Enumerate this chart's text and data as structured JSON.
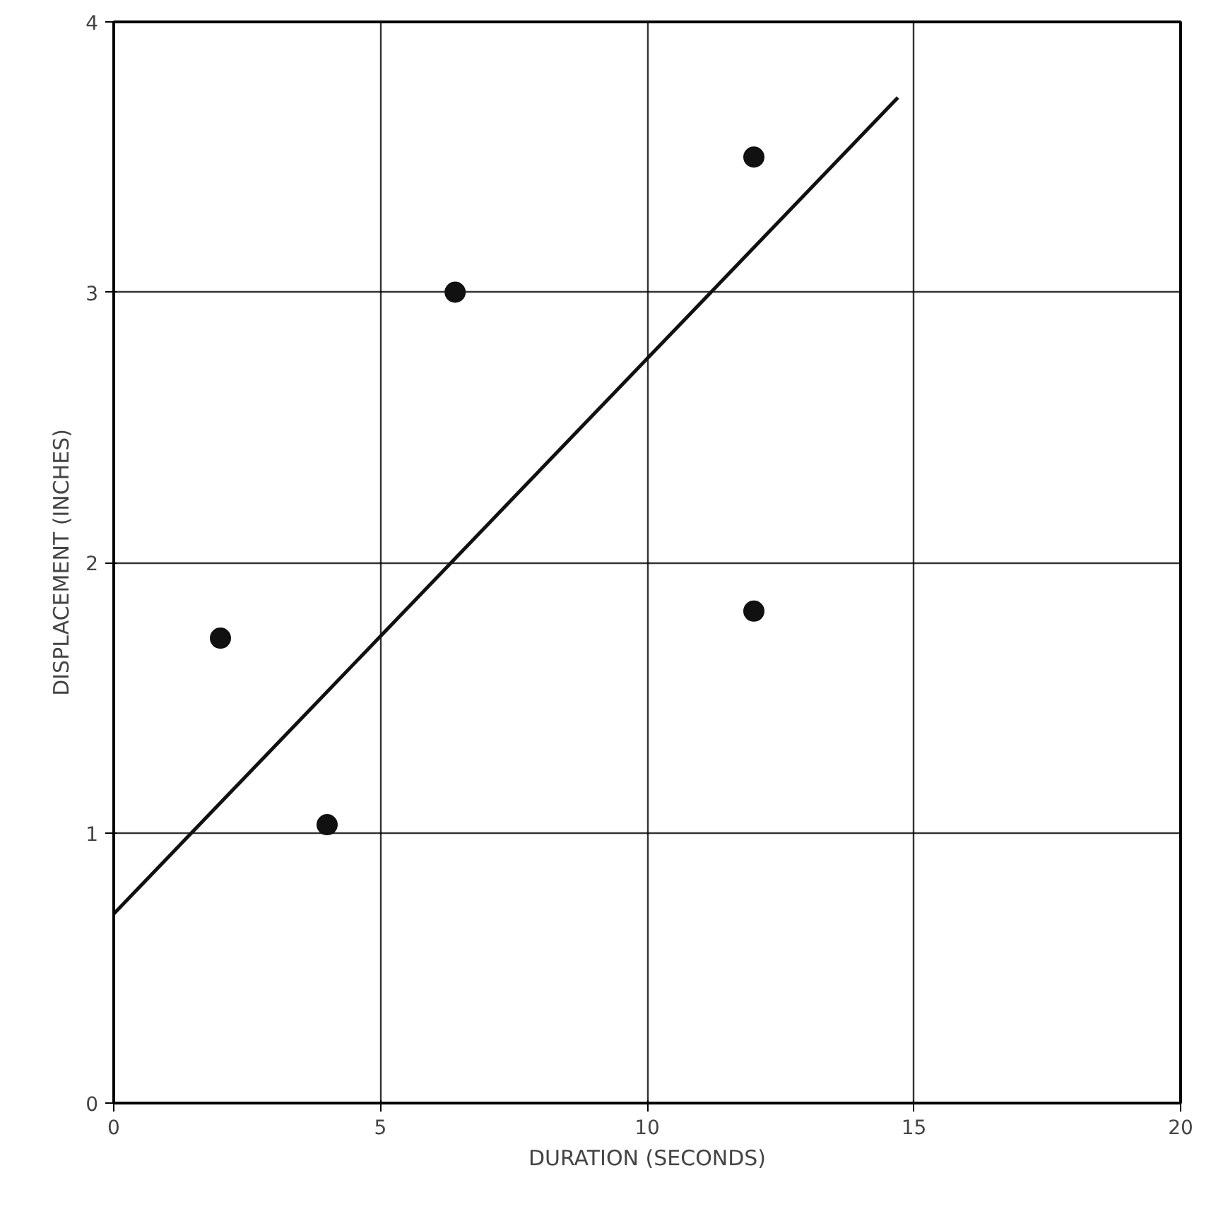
{
  "chart_data": {
    "type": "scatter",
    "xlabel": "DURATION (SECONDS)",
    "ylabel": "DISPLACEMENT (INCHES)",
    "x": [
      2,
      4,
      6.4,
      12,
      12
    ],
    "series": [
      {
        "color": "#111111",
        "values": [
          1.72,
          1.03,
          3.0,
          3.5,
          1.82
        ]
      },
      {
        "type": "line",
        "marker": "none",
        "color": "#111111",
        "x": [
          0,
          14.7
        ],
        "values": [
          0.7,
          3.72
        ]
      }
    ],
    "xlim": [
      0,
      20
    ],
    "ylim": [
      0,
      4
    ],
    "xticks": [
      0,
      5,
      10,
      15,
      20
    ],
    "yticks": [
      0,
      1,
      2,
      3,
      4
    ],
    "grid": true,
    "marker": "circle"
  }
}
